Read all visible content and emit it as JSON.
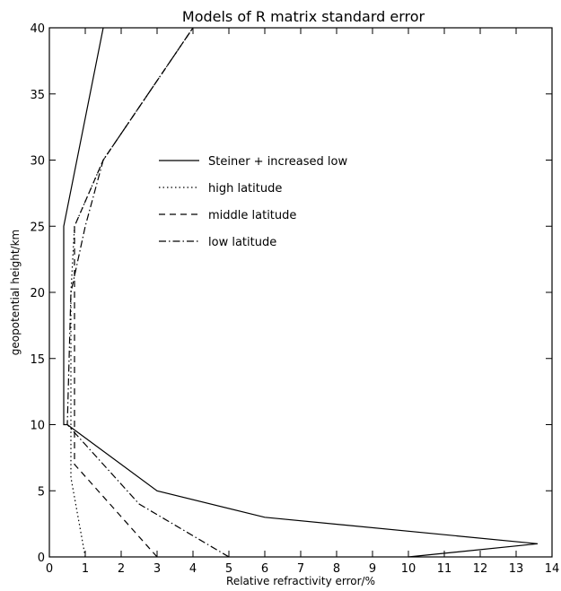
{
  "chart_data": {
    "type": "line",
    "title": "Models of R matrix standard error",
    "xlabel": "Relative refractivity error/%",
    "ylabel": "geopotential height/km",
    "xlim": [
      0,
      14
    ],
    "ylim": [
      0,
      40
    ],
    "xticks": [
      0,
      1,
      2,
      3,
      4,
      5,
      6,
      7,
      8,
      9,
      10,
      11,
      12,
      13,
      14
    ],
    "yticks": [
      0,
      5,
      10,
      15,
      20,
      25,
      30,
      35,
      40
    ],
    "grid": false,
    "legend_position": "center",
    "series": [
      {
        "name": "Steiner + increased low",
        "style": "solid",
        "x": [
          10,
          13.6,
          6,
          3,
          0.5,
          0.4,
          0.4,
          1.5
        ],
        "y": [
          0,
          1,
          3,
          5,
          10,
          10,
          25,
          40
        ]
      },
      {
        "name": "high latitude",
        "style": "dotted",
        "x": [
          1,
          0.6,
          0.6,
          0.6,
          0.7,
          1.5,
          4
        ],
        "y": [
          0,
          6,
          10,
          20,
          25,
          30,
          40
        ]
      },
      {
        "name": "middle latitude",
        "style": "dashed",
        "x": [
          3,
          0.7,
          0.7,
          0.7,
          0.7,
          1.5,
          4
        ],
        "y": [
          0,
          7,
          10,
          20,
          25,
          30,
          40
        ]
      },
      {
        "name": "low latitude",
        "style": "dashdot",
        "x": [
          5,
          2.5,
          0.5,
          0.6,
          1,
          1.5,
          4
        ],
        "y": [
          0,
          4,
          10,
          20,
          25,
          30,
          40
        ]
      }
    ]
  }
}
